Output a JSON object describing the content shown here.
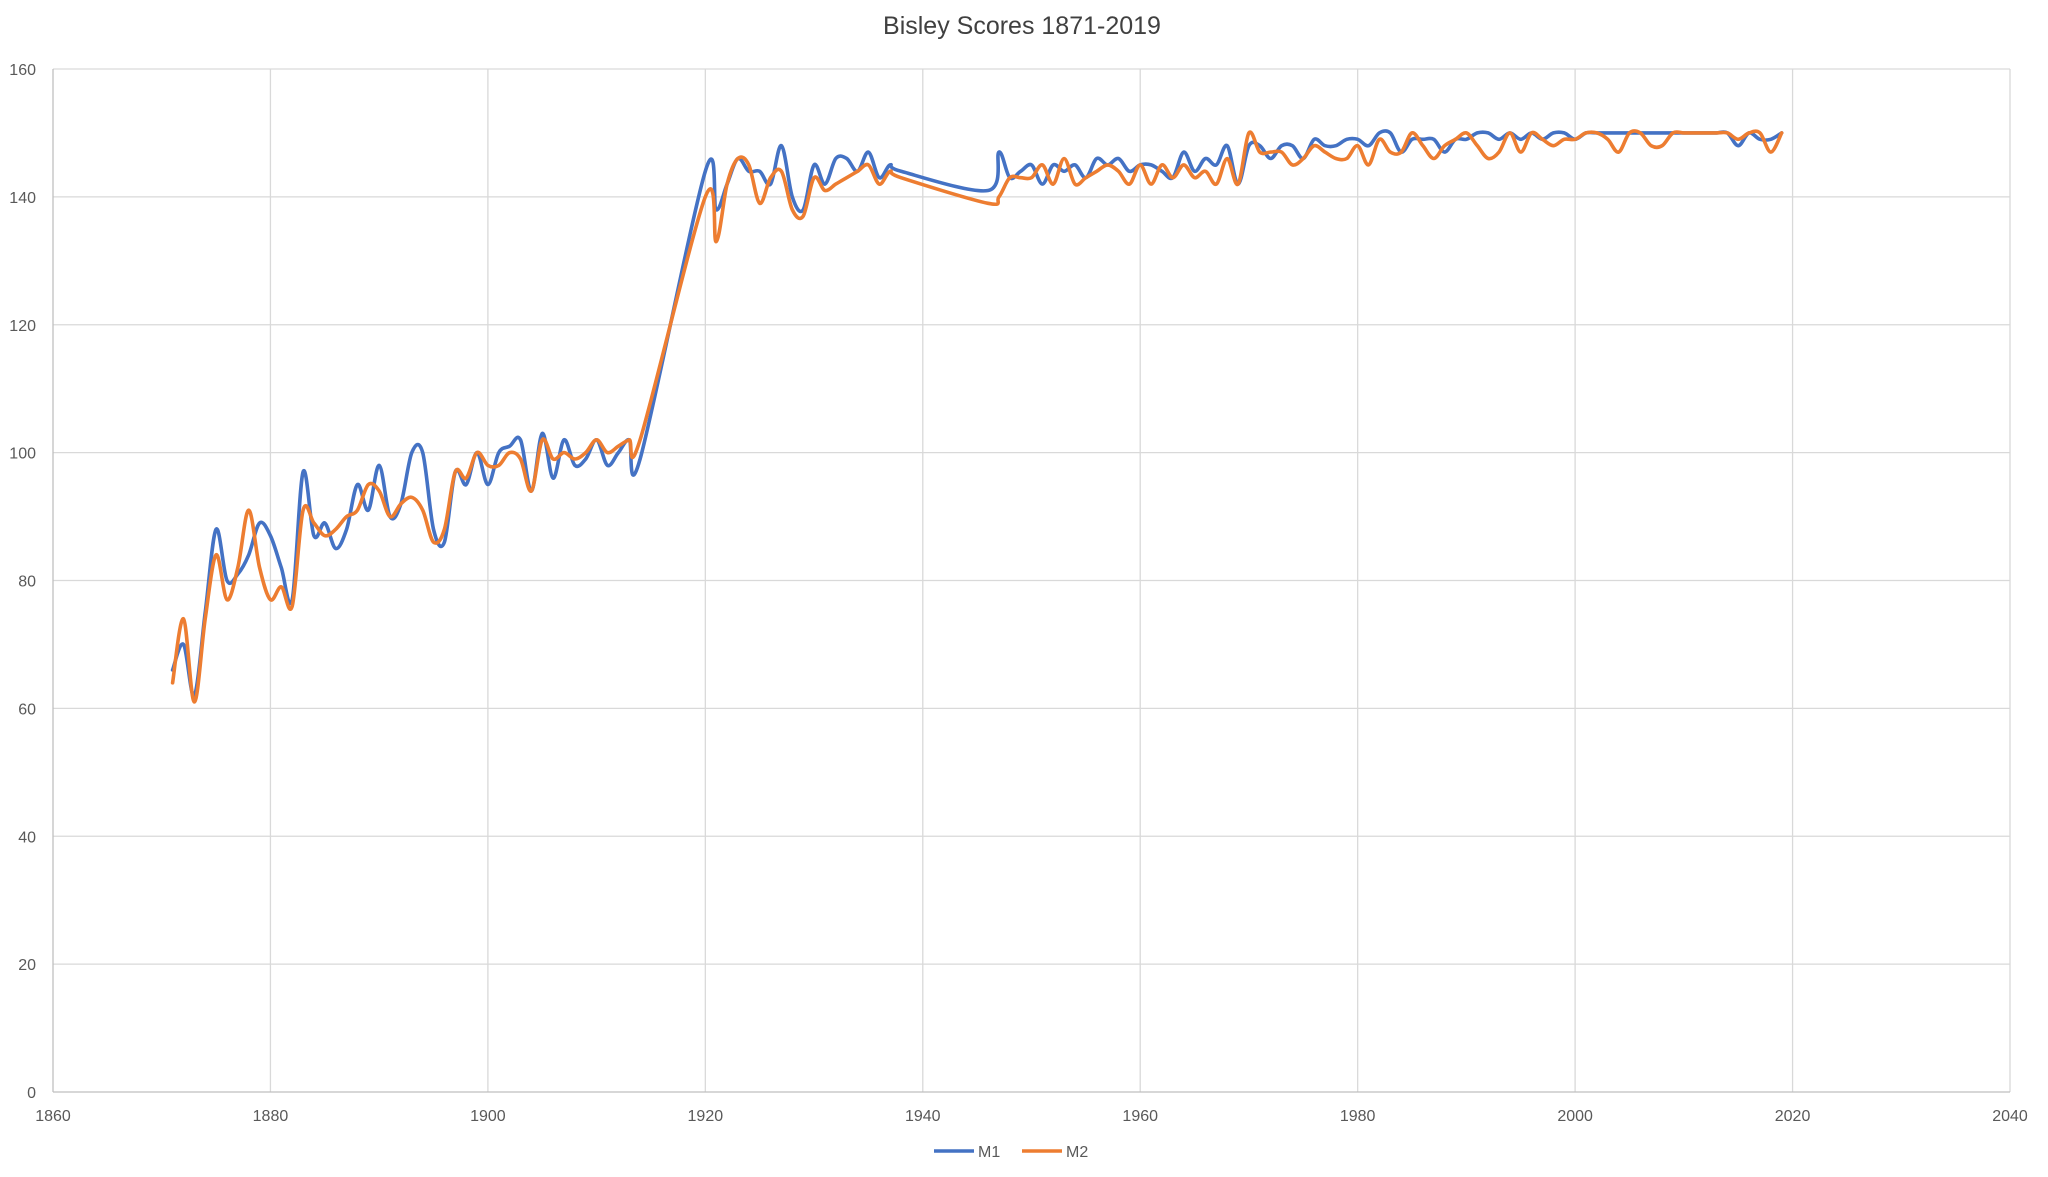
{
  "chart_data": {
    "type": "line",
    "title": "Bisley Scores 1871-2019",
    "xlabel": "",
    "ylabel": "",
    "xlim": [
      1860,
      2040
    ],
    "ylim": [
      0,
      160
    ],
    "x_ticks": [
      1860,
      1880,
      1900,
      1920,
      1940,
      1960,
      1980,
      2000,
      2020,
      2040
    ],
    "y_ticks": [
      0,
      20,
      40,
      60,
      80,
      100,
      120,
      140,
      160
    ],
    "grid": true,
    "legend_position": "bottom",
    "series": [
      {
        "name": "M1",
        "color": "#4472C4",
        "points": [
          [
            1871,
            66
          ],
          [
            1872,
            70
          ],
          [
            1873,
            62
          ],
          [
            1874,
            75
          ],
          [
            1875,
            88
          ],
          [
            1876,
            80
          ],
          [
            1877,
            81
          ],
          [
            1878,
            84
          ],
          [
            1879,
            89
          ],
          [
            1880,
            87
          ],
          [
            1881,
            82
          ],
          [
            1882,
            77
          ],
          [
            1883,
            97
          ],
          [
            1884,
            87
          ],
          [
            1885,
            89
          ],
          [
            1886,
            85
          ],
          [
            1887,
            88
          ],
          [
            1888,
            95
          ],
          [
            1889,
            91
          ],
          [
            1890,
            98
          ],
          [
            1891,
            90
          ],
          [
            1892,
            92
          ],
          [
            1893,
            100
          ],
          [
            1894,
            100
          ],
          [
            1895,
            88
          ],
          [
            1896,
            86
          ],
          [
            1897,
            97
          ],
          [
            1898,
            95
          ],
          [
            1899,
            100
          ],
          [
            1900,
            95
          ],
          [
            1901,
            100
          ],
          [
            1902,
            101
          ],
          [
            1903,
            102
          ],
          [
            1904,
            94
          ],
          [
            1905,
            103
          ],
          [
            1906,
            96
          ],
          [
            1907,
            102
          ],
          [
            1908,
            98
          ],
          [
            1909,
            99
          ],
          [
            1910,
            102
          ],
          [
            1911,
            98
          ],
          [
            1912,
            100
          ],
          [
            1913,
            102
          ],
          [
            1914,
            99
          ],
          [
            1920,
            144
          ],
          [
            1921,
            138
          ],
          [
            1922,
            142
          ],
          [
            1923,
            146
          ],
          [
            1924,
            144
          ],
          [
            1925,
            144
          ],
          [
            1926,
            142
          ],
          [
            1927,
            148
          ],
          [
            1928,
            140
          ],
          [
            1929,
            138
          ],
          [
            1930,
            145
          ],
          [
            1931,
            142
          ],
          [
            1932,
            146
          ],
          [
            1933,
            146
          ],
          [
            1934,
            144
          ],
          [
            1935,
            147
          ],
          [
            1936,
            143
          ],
          [
            1937,
            145
          ],
          [
            1938,
            144
          ],
          [
            1946,
            141
          ],
          [
            1947,
            147
          ],
          [
            1948,
            143
          ],
          [
            1949,
            144
          ],
          [
            1950,
            145
          ],
          [
            1951,
            142
          ],
          [
            1952,
            145
          ],
          [
            1953,
            144
          ],
          [
            1954,
            145
          ],
          [
            1955,
            143
          ],
          [
            1956,
            146
          ],
          [
            1957,
            145
          ],
          [
            1958,
            146
          ],
          [
            1959,
            144
          ],
          [
            1960,
            145
          ],
          [
            1961,
            145
          ],
          [
            1962,
            144
          ],
          [
            1963,
            143
          ],
          [
            1964,
            147
          ],
          [
            1965,
            144
          ],
          [
            1966,
            146
          ],
          [
            1967,
            145
          ],
          [
            1968,
            148
          ],
          [
            1969,
            142
          ],
          [
            1970,
            148
          ],
          [
            1971,
            148
          ],
          [
            1972,
            146
          ],
          [
            1973,
            148
          ],
          [
            1974,
            148
          ],
          [
            1975,
            146
          ],
          [
            1976,
            149
          ],
          [
            1977,
            148
          ],
          [
            1978,
            148
          ],
          [
            1979,
            149
          ],
          [
            1980,
            149
          ],
          [
            1981,
            148
          ],
          [
            1982,
            150
          ],
          [
            1983,
            150
          ],
          [
            1984,
            147
          ],
          [
            1985,
            149
          ],
          [
            1986,
            149
          ],
          [
            1987,
            149
          ],
          [
            1988,
            147
          ],
          [
            1989,
            149
          ],
          [
            1990,
            149
          ],
          [
            1991,
            150
          ],
          [
            1992,
            150
          ],
          [
            1993,
            149
          ],
          [
            1994,
            150
          ],
          [
            1995,
            149
          ],
          [
            1996,
            150
          ],
          [
            1997,
            149
          ],
          [
            1998,
            150
          ],
          [
            1999,
            150
          ],
          [
            2000,
            149
          ],
          [
            2001,
            150
          ],
          [
            2002,
            150
          ],
          [
            2003,
            150
          ],
          [
            2004,
            150
          ],
          [
            2005,
            150
          ],
          [
            2006,
            150
          ],
          [
            2007,
            150
          ],
          [
            2008,
            150
          ],
          [
            2009,
            150
          ],
          [
            2010,
            150
          ],
          [
            2011,
            150
          ],
          [
            2012,
            150
          ],
          [
            2013,
            150
          ],
          [
            2014,
            150
          ],
          [
            2015,
            148
          ],
          [
            2016,
            150
          ],
          [
            2017,
            149
          ],
          [
            2018,
            149
          ],
          [
            2019,
            150
          ]
        ]
      },
      {
        "name": "M2",
        "color": "#ED7D31",
        "points": [
          [
            1871,
            64
          ],
          [
            1872,
            74
          ],
          [
            1873,
            61
          ],
          [
            1874,
            74
          ],
          [
            1875,
            84
          ],
          [
            1876,
            77
          ],
          [
            1877,
            82
          ],
          [
            1878,
            91
          ],
          [
            1879,
            82
          ],
          [
            1880,
            77
          ],
          [
            1881,
            79
          ],
          [
            1882,
            76
          ],
          [
            1883,
            91
          ],
          [
            1884,
            89
          ],
          [
            1885,
            87
          ],
          [
            1886,
            88
          ],
          [
            1887,
            90
          ],
          [
            1888,
            91
          ],
          [
            1889,
            95
          ],
          [
            1890,
            94
          ],
          [
            1891,
            90
          ],
          [
            1892,
            92
          ],
          [
            1893,
            93
          ],
          [
            1894,
            91
          ],
          [
            1895,
            86
          ],
          [
            1896,
            88
          ],
          [
            1897,
            97
          ],
          [
            1898,
            96
          ],
          [
            1899,
            100
          ],
          [
            1900,
            98
          ],
          [
            1901,
            98
          ],
          [
            1902,
            100
          ],
          [
            1903,
            99
          ],
          [
            1904,
            94
          ],
          [
            1905,
            102
          ],
          [
            1906,
            99
          ],
          [
            1907,
            100
          ],
          [
            1908,
            99
          ],
          [
            1909,
            100
          ],
          [
            1910,
            102
          ],
          [
            1911,
            100
          ],
          [
            1912,
            101
          ],
          [
            1913,
            102
          ],
          [
            1914,
            102
          ],
          [
            1920,
            140
          ],
          [
            1921,
            133
          ],
          [
            1922,
            142
          ],
          [
            1923,
            146
          ],
          [
            1924,
            145
          ],
          [
            1925,
            139
          ],
          [
            1926,
            143
          ],
          [
            1927,
            144
          ],
          [
            1928,
            138
          ],
          [
            1929,
            137
          ],
          [
            1930,
            143
          ],
          [
            1931,
            141
          ],
          [
            1932,
            142
          ],
          [
            1933,
            143
          ],
          [
            1934,
            144
          ],
          [
            1935,
            145
          ],
          [
            1936,
            142
          ],
          [
            1937,
            144
          ],
          [
            1938,
            143
          ],
          [
            1946,
            139
          ],
          [
            1947,
            140
          ],
          [
            1948,
            143
          ],
          [
            1949,
            143
          ],
          [
            1950,
            143
          ],
          [
            1951,
            145
          ],
          [
            1952,
            142
          ],
          [
            1953,
            146
          ],
          [
            1954,
            142
          ],
          [
            1955,
            143
          ],
          [
            1956,
            144
          ],
          [
            1957,
            145
          ],
          [
            1958,
            144
          ],
          [
            1959,
            142
          ],
          [
            1960,
            145
          ],
          [
            1961,
            142
          ],
          [
            1962,
            145
          ],
          [
            1963,
            143
          ],
          [
            1964,
            145
          ],
          [
            1965,
            143
          ],
          [
            1966,
            144
          ],
          [
            1967,
            142
          ],
          [
            1968,
            146
          ],
          [
            1969,
            142
          ],
          [
            1970,
            150
          ],
          [
            1971,
            147
          ],
          [
            1972,
            147
          ],
          [
            1973,
            147
          ],
          [
            1974,
            145
          ],
          [
            1975,
            146
          ],
          [
            1976,
            148
          ],
          [
            1977,
            147
          ],
          [
            1978,
            146
          ],
          [
            1979,
            146
          ],
          [
            1980,
            148
          ],
          [
            1981,
            145
          ],
          [
            1982,
            149
          ],
          [
            1983,
            147
          ],
          [
            1984,
            147
          ],
          [
            1985,
            150
          ],
          [
            1986,
            148
          ],
          [
            1987,
            146
          ],
          [
            1988,
            148
          ],
          [
            1989,
            149
          ],
          [
            1990,
            150
          ],
          [
            1991,
            148
          ],
          [
            1992,
            146
          ],
          [
            1993,
            147
          ],
          [
            1994,
            150
          ],
          [
            1995,
            147
          ],
          [
            1996,
            150
          ],
          [
            1997,
            149
          ],
          [
            1998,
            148
          ],
          [
            1999,
            149
          ],
          [
            2000,
            149
          ],
          [
            2001,
            150
          ],
          [
            2002,
            150
          ],
          [
            2003,
            149
          ],
          [
            2004,
            147
          ],
          [
            2005,
            150
          ],
          [
            2006,
            150
          ],
          [
            2007,
            148
          ],
          [
            2008,
            148
          ],
          [
            2009,
            150
          ],
          [
            2010,
            150
          ],
          [
            2011,
            150
          ],
          [
            2012,
            150
          ],
          [
            2013,
            150
          ],
          [
            2014,
            150
          ],
          [
            2015,
            149
          ],
          [
            2016,
            150
          ],
          [
            2017,
            150
          ],
          [
            2018,
            147
          ],
          [
            2019,
            150
          ]
        ]
      }
    ]
  }
}
